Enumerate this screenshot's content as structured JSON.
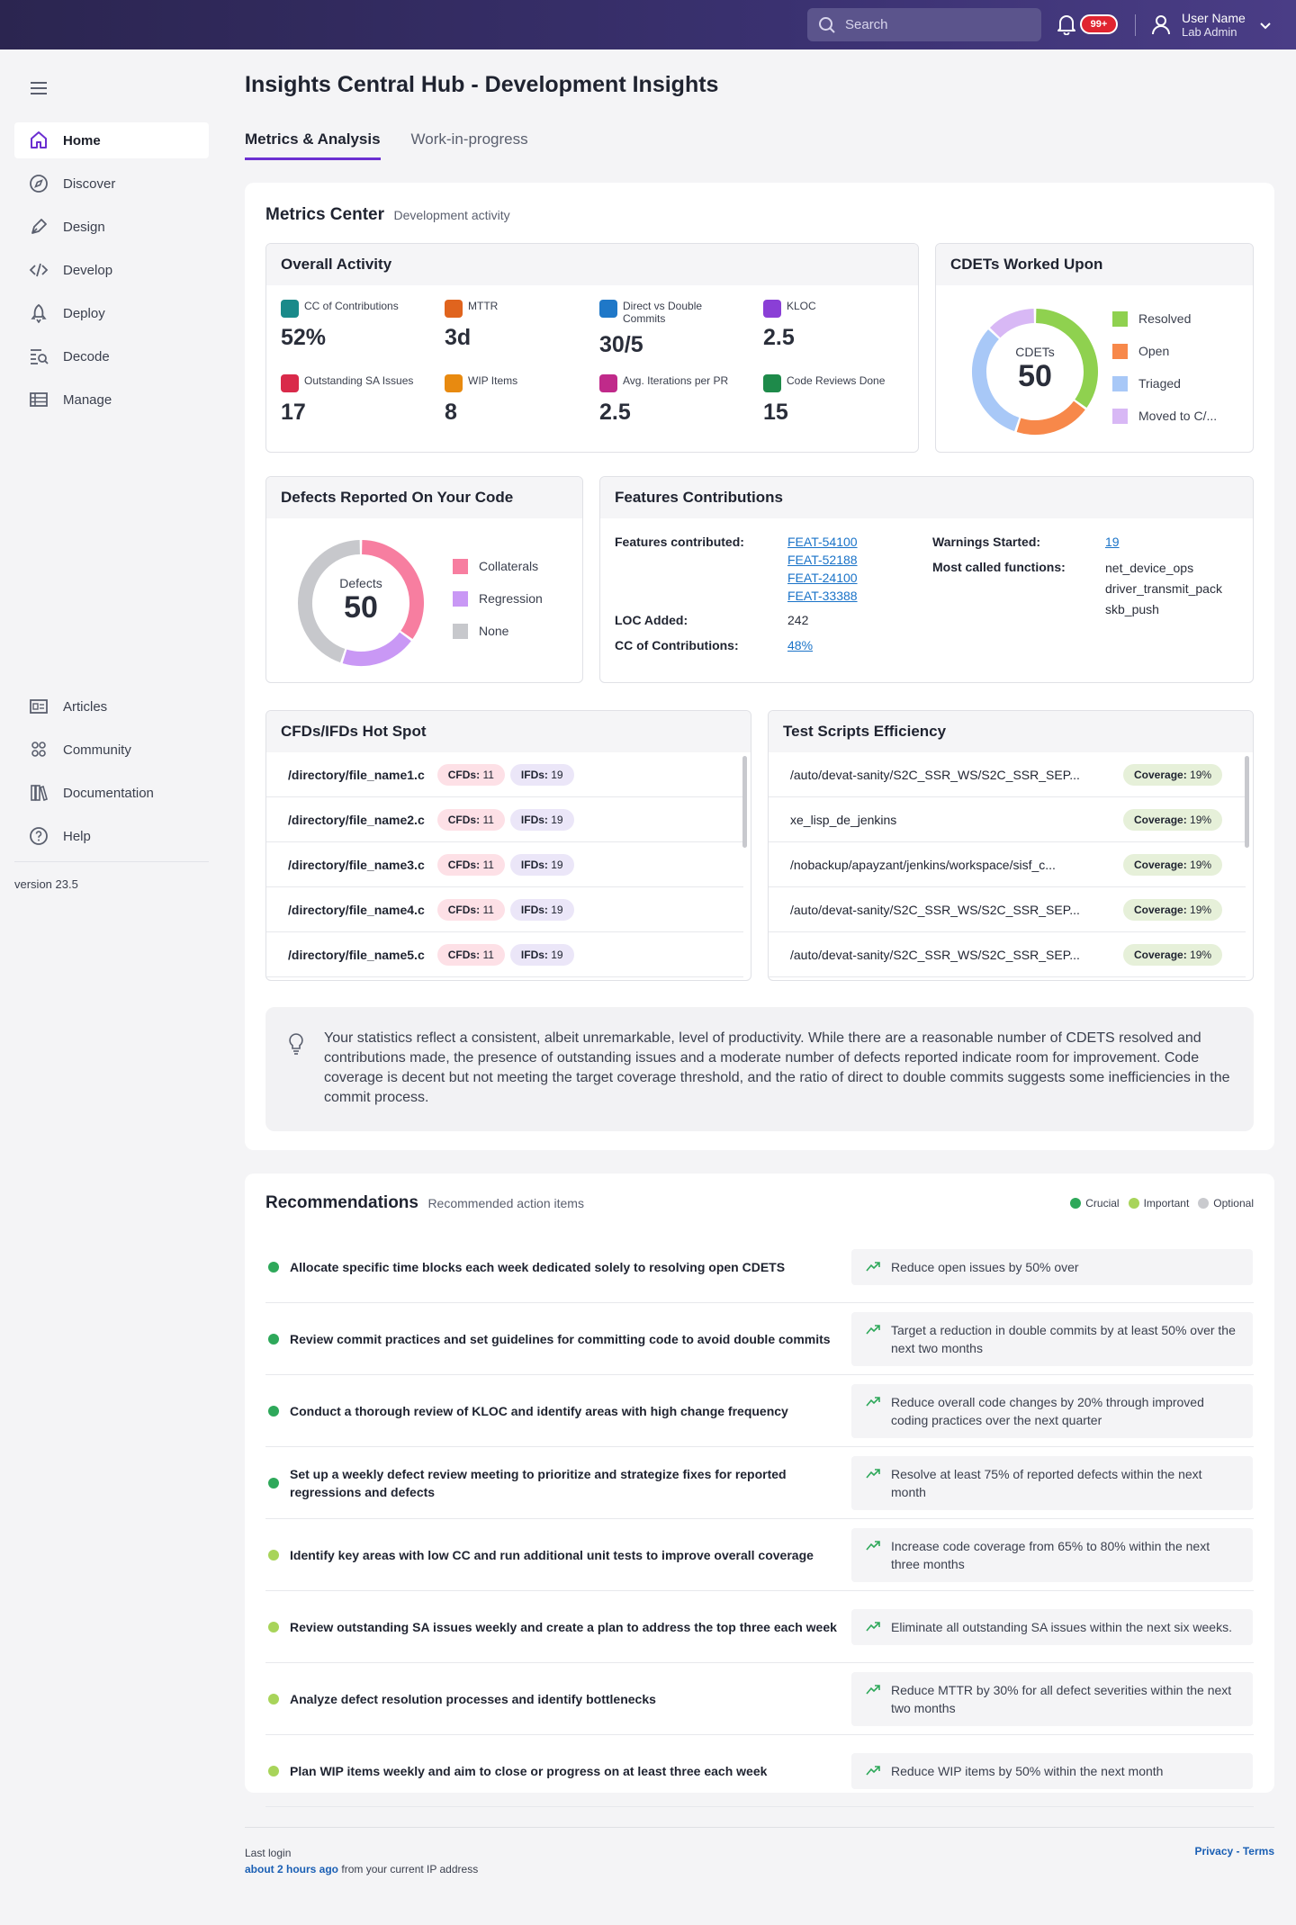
{
  "topbar": {
    "search_placeholder": "Search",
    "notifications_badge": "99+",
    "user_name": "User Name",
    "user_role": "Lab Admin"
  },
  "sidebar": {
    "items": [
      {
        "label": "Home",
        "icon": "home-icon"
      },
      {
        "label": "Discover",
        "icon": "compass-icon"
      },
      {
        "label": "Design",
        "icon": "pen-icon"
      },
      {
        "label": "Develop",
        "icon": "code-icon"
      },
      {
        "label": "Deploy",
        "icon": "rocket-icon"
      },
      {
        "label": "Decode",
        "icon": "decode-icon"
      },
      {
        "label": "Manage",
        "icon": "table-icon"
      }
    ],
    "secondary": [
      {
        "label": "Articles",
        "icon": "article-icon"
      },
      {
        "label": "Community",
        "icon": "community-icon"
      },
      {
        "label": "Documentation",
        "icon": "book-icon"
      },
      {
        "label": "Help",
        "icon": "help-icon"
      }
    ],
    "version": "version 23.5"
  },
  "page": {
    "title": "Insights Central Hub - Development Insights",
    "tabs": [
      "Metrics & Analysis",
      "Work-in-progress"
    ]
  },
  "metrics_center": {
    "title": "Metrics Center",
    "subtitle": "Development activity"
  },
  "overall_activity": {
    "title": "Overall Activity",
    "metrics": [
      {
        "label": "CC of Contributions",
        "value": "52%",
        "icon": "percent-icon",
        "color": "#1a8a8a"
      },
      {
        "label": "MTTR",
        "value": "3d",
        "icon": "clock-icon",
        "color": "#e0641e"
      },
      {
        "label": "Direct vs Double Commits",
        "value": "30/5",
        "icon": "commit-icon",
        "color": "#1f78c8"
      },
      {
        "label": "KLOC",
        "value": "2.5",
        "icon": "code-icon",
        "color": "#8a3fd6"
      },
      {
        "label": "Outstanding SA Issues",
        "value": "17",
        "icon": "warning-icon",
        "color": "#d92a4a"
      },
      {
        "label": "WIP Items",
        "value": "8",
        "icon": "hourglass-icon",
        "color": "#e88a10"
      },
      {
        "label": "Avg. Iterations per PR",
        "value": "2.5",
        "icon": "refresh-icon",
        "color": "#c02a8a"
      },
      {
        "label": "Code Reviews Done",
        "value": "15",
        "icon": "review-icon",
        "color": "#1e8a4a"
      }
    ]
  },
  "cdets": {
    "title": "CDETs Worked Upon",
    "center_label": "CDETs",
    "center_value": "50",
    "legend": [
      {
        "label": "Resolved",
        "color": "#8fd14f",
        "value": 0.35
      },
      {
        "label": "Open",
        "color": "#f7884a",
        "value": 0.2
      },
      {
        "label": "Triaged",
        "color": "#a8c8f7",
        "value": 0.32
      },
      {
        "label": "Moved to C/...",
        "color": "#d8b8f5",
        "value": 0.13
      }
    ]
  },
  "defects": {
    "title": "Defects Reported On Your Code",
    "center_label": "Defects",
    "center_value": "50",
    "legend": [
      {
        "label": "Collaterals",
        "color": "#f77ea0",
        "value": 0.35
      },
      {
        "label": "Regression",
        "color": "#c998f5",
        "value": 0.2
      },
      {
        "label": "None",
        "color": "#c7c8cc",
        "value": 0.45
      }
    ]
  },
  "features": {
    "title": "Features Contributions",
    "features_label": "Features contributed:",
    "features": [
      "FEAT-54100",
      "FEAT-52188",
      "FEAT-24100",
      "FEAT-33388"
    ],
    "loc_label": "LOC Added:",
    "loc_value": "242",
    "cc_label": "CC of Contributions:",
    "cc_value": "48%",
    "warnings_label": "Warnings Started:",
    "warnings_value": "19",
    "functions_label": "Most called functions:",
    "functions": [
      "net_device_ops",
      "driver_transmit_pack",
      "skb_push"
    ]
  },
  "hotspot": {
    "title": "CFDs/IFDs Hot Spot",
    "cfd_label": "CFDs:",
    "ifd_label": "IFDs:",
    "rows": [
      {
        "file": "/directory/file_name1.c",
        "cfds": "11",
        "ifds": "19"
      },
      {
        "file": "/directory/file_name2.c",
        "cfds": "11",
        "ifds": "19"
      },
      {
        "file": "/directory/file_name3.c",
        "cfds": "11",
        "ifds": "19"
      },
      {
        "file": "/directory/file_name4.c",
        "cfds": "11",
        "ifds": "19"
      },
      {
        "file": "/directory/file_name5.c",
        "cfds": "11",
        "ifds": "19"
      }
    ]
  },
  "test_scripts": {
    "title": "Test Scripts Efficiency",
    "coverage_label": "Coverage:",
    "rows": [
      {
        "path": "/auto/devat-sanity/S2C_SSR_WS/S2C_SSR_SEP...",
        "coverage": "19%"
      },
      {
        "path": "xe_lisp_de_jenkins",
        "coverage": "19%"
      },
      {
        "path": "/nobackup/apayzant/jenkins/workspace/sisf_c...",
        "coverage": "19%"
      },
      {
        "path": "/auto/devat-sanity/S2C_SSR_WS/S2C_SSR_SEP...",
        "coverage": "19%"
      },
      {
        "path": "/auto/devat-sanity/S2C_SSR_WS/S2C_SSR_SEP...",
        "coverage": "19%"
      }
    ]
  },
  "insight": {
    "text": "Your statistics reflect a consistent, albeit unremarkable, level of productivity. While there are a reasonable number of CDETS resolved and contributions made, the presence of outstanding issues and a moderate number of defects reported indicate room for improvement. Code coverage is decent but not meeting the target coverage threshold, and the ratio of direct to double commits suggests some inefficiencies in the commit process."
  },
  "recommendations": {
    "title": "Recommendations",
    "subtitle": "Recommended action items",
    "legend": [
      {
        "label": "Crucial",
        "color": "#2ea85a"
      },
      {
        "label": "Important",
        "color": "#a8d45a"
      },
      {
        "label": "Optional",
        "color": "#c9cace"
      }
    ],
    "items": [
      {
        "text": "Allocate specific time blocks each week dedicated solely to resolving open CDETS",
        "target": "Reduce open issues by 50% over",
        "priority": "crucial"
      },
      {
        "text": "Review commit practices and set guidelines for committing code to avoid double commits",
        "target": "Target a reduction in double commits by at least 50% over the next two months",
        "priority": "crucial"
      },
      {
        "text": "Conduct a thorough review of KLOC and identify areas with high change frequency",
        "target": "Reduce overall code changes by 20% through improved coding practices over the next quarter",
        "priority": "crucial"
      },
      {
        "text": "Set up a weekly defect review meeting to prioritize and strategize fixes for reported regressions and defects",
        "target": "Resolve at least 75% of reported defects within the next month",
        "priority": "crucial"
      },
      {
        "text": "Identify key areas with low CC and run additional unit tests to improve overall coverage",
        "target": "Increase code coverage from 65% to 80% within the next three months",
        "priority": "important"
      },
      {
        "text": "Review outstanding SA issues weekly and create a plan to address the top three each week",
        "target": "Eliminate all outstanding SA issues within the next six weeks.",
        "priority": "important"
      },
      {
        "text": "Analyze defect resolution processes and identify bottlenecks",
        "target": "Reduce MTTR by 30% for all defect severities within the next two months",
        "priority": "important"
      },
      {
        "text": "Plan WIP items weekly and aim to close or progress on at least three each week",
        "target": "Reduce WIP items by 50% within the next month",
        "priority": "important"
      }
    ]
  },
  "footer": {
    "last_login_label": "Last login",
    "last_login_value": "about 2 hours ago",
    "last_login_suffix": "from your current IP address",
    "privacy": "Privacy",
    "separator": "-",
    "terms": "Terms"
  }
}
